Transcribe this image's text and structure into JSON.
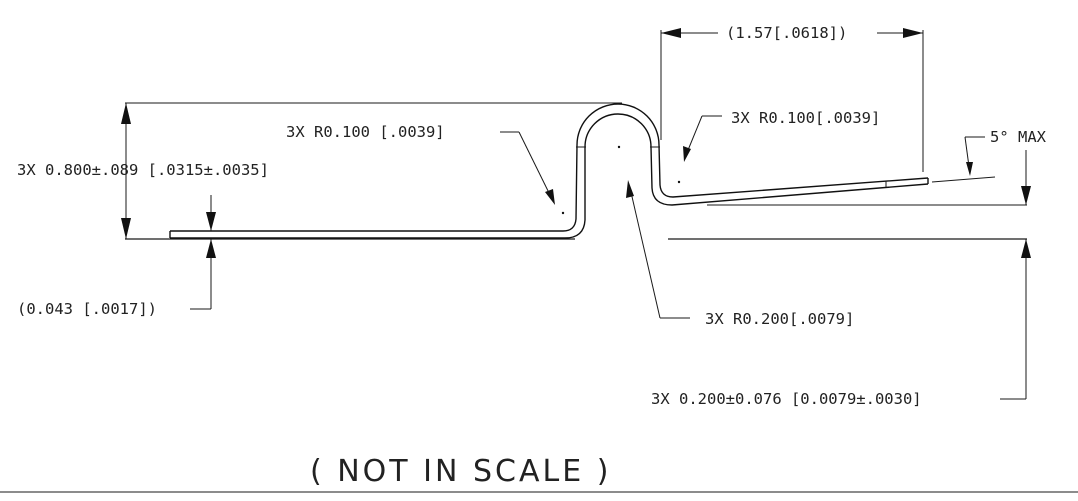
{
  "labels": {
    "top_dim": "(1.57[.0618])",
    "radius_left": "3X R0.100 [.0039]",
    "radius_right": "3X R0.100[.0039]",
    "angle": "5° MAX",
    "height_dim": "3X 0.800±.089 [.0315±.0035]",
    "thickness_dim": "(0.043 [.0017])",
    "radius_inner": "3X R0.200[.0079]",
    "offset_dim": "3X 0.200±0.076 [0.0079±.0030]",
    "note": "( NOT IN SCALE )"
  }
}
